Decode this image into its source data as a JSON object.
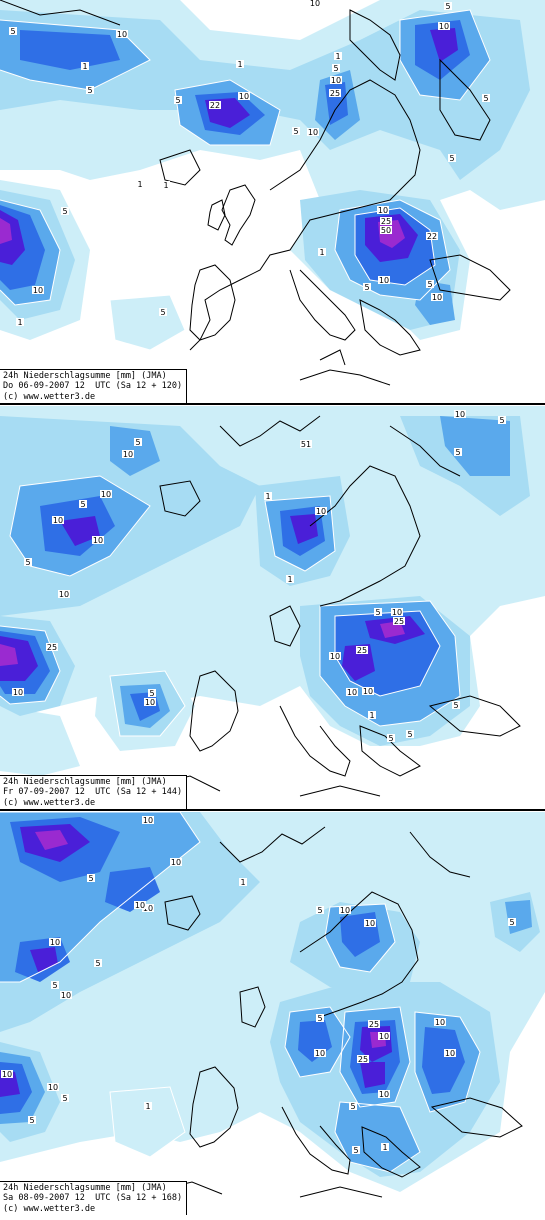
{
  "colors": {
    "level_1": "#cdeef8",
    "level_2": "#a7dcf3",
    "level_5": "#5aa9ec",
    "level_10": "#2f6fe6",
    "level_25": "#4a1fd8",
    "level_50": "#9a2ad0",
    "coast": "#000000",
    "contour": "#ffffff"
  },
  "panels": [
    {
      "caption": {
        "line1": "24h Niederschlagsumme [mm] (JMA)",
        "line2": "Do 06-09-2007 12  UTC (Sa 12 + 120)",
        "line3": "(c) www.wetter3.de"
      },
      "labels": [
        "5",
        "10",
        "10",
        "5",
        "1",
        "22",
        "5",
        "10",
        "25",
        "10",
        "1",
        "5",
        "10",
        "5",
        "1",
        "5",
        "10",
        "5",
        "50",
        "25",
        "22",
        "10",
        "5",
        "10",
        "1",
        "5",
        "10",
        "5",
        "1",
        "5",
        "1",
        "1",
        "10",
        "5"
      ]
    },
    {
      "caption": {
        "line1": "24h Niederschlagsumme [mm] (JMA)",
        "line2": "Fr 07-09-2007 12  UTC (Sa 12 + 144)",
        "line3": "(c) www.wetter3.de"
      },
      "labels": [
        "10",
        "5",
        "5",
        "10",
        "51",
        "10",
        "5",
        "5",
        "10",
        "10",
        "10",
        "10",
        "5",
        "1",
        "25",
        "10",
        "25",
        "10",
        "5",
        "10",
        "25",
        "10",
        "10",
        "5",
        "1",
        "5",
        "10",
        "5",
        "1",
        "5"
      ]
    },
    {
      "caption": {
        "line1": "24h Niederschlagsumme [mm] (JMA)",
        "line2": "Sa 08-09-2007 12  UTC (Sa 12 + 168)",
        "line3": "(c) www.wetter3.de"
      },
      "labels": [
        "10",
        "10",
        "5",
        "10",
        "1",
        "10",
        "10",
        "5",
        "10",
        "5",
        "10",
        "5",
        "10",
        "5",
        "10",
        "25",
        "10",
        "10",
        "25",
        "10",
        "5",
        "10",
        "10",
        "5",
        "1",
        "5",
        "10",
        "5",
        "1",
        "5"
      ]
    }
  ]
}
